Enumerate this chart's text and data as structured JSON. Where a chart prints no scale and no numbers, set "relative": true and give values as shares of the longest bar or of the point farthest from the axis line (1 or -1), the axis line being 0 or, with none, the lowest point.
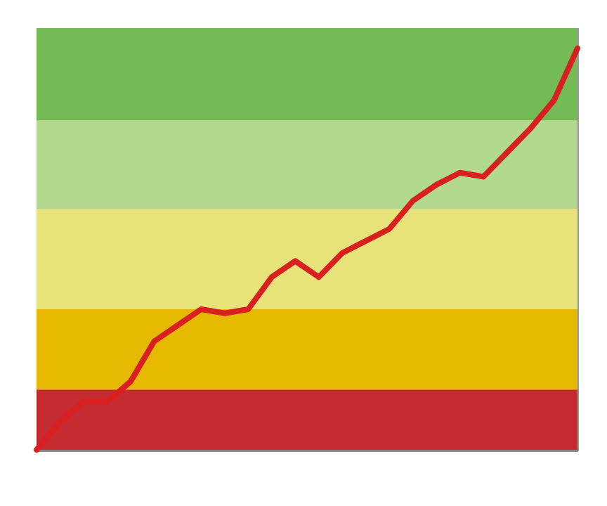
{
  "chart_data": {
    "type": "line",
    "relative": true,
    "tick_labels": false,
    "marker": "none",
    "line_style": "solid",
    "categories": [
      null,
      null,
      null,
      null,
      null,
      null,
      null,
      null,
      null,
      null,
      null,
      null,
      null,
      null,
      null,
      null,
      null,
      null,
      null,
      null,
      null,
      null,
      null,
      null
    ],
    "series": [
      {
        "color": "#d92020",
        "values": [
          0,
          0.07,
          0.12,
          0.12,
          0.17,
          0.27,
          0.31,
          0.35,
          0.34,
          0.35,
          0.43,
          0.47,
          0.43,
          0.49,
          0.52,
          0.55,
          0.62,
          0.66,
          0.69,
          0.68,
          0.74,
          0.8,
          0.87,
          1
        ]
      }
    ],
    "bands": [
      {
        "axis": "y",
        "from": 0,
        "to": 0.15,
        "color": "#c42a30"
      },
      {
        "axis": "y",
        "from": 0.15,
        "to": 0.35,
        "color": "#e6b800"
      },
      {
        "axis": "y",
        "from": 0.35,
        "to": 0.6,
        "color": "#e9e27a"
      },
      {
        "axis": "y",
        "from": 0.6,
        "to": 0.82,
        "color": "#b2d98e"
      },
      {
        "axis": "y",
        "from": 0.82,
        "to": 1.05,
        "color": "#74ba55"
      }
    ]
  }
}
